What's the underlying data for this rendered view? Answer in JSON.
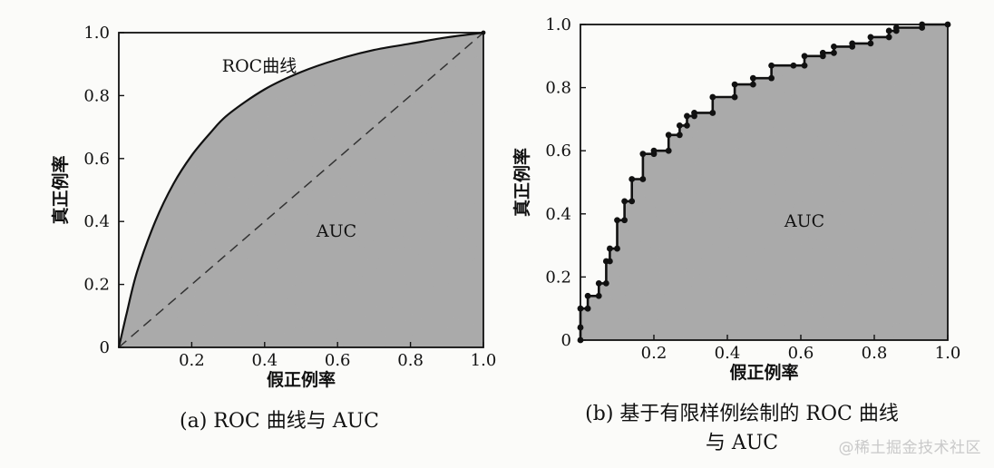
{
  "watermark": "@稀土掘金技术社区",
  "chart_data": [
    {
      "type": "area",
      "caption": "(a) ROC 曲线与 AUC",
      "xlabel": "假正例率",
      "ylabel": "真正例率",
      "xlim": [
        0,
        1
      ],
      "ylim": [
        0,
        1
      ],
      "xticks": [
        "0.2",
        "0.4",
        "0.6",
        "0.8",
        "1.0"
      ],
      "yticks": [
        "0",
        "0.2",
        "0.4",
        "0.6",
        "0.8",
        "1.0"
      ],
      "annotations": [
        "ROC曲线",
        "AUC"
      ],
      "series": [
        {
          "x": [
            0,
            0.02,
            0.05,
            0.1,
            0.15,
            0.2,
            0.25,
            0.3,
            0.4,
            0.5,
            0.6,
            0.7,
            0.8,
            0.9,
            1.0
          ],
          "y": [
            0,
            0.1,
            0.24,
            0.4,
            0.52,
            0.61,
            0.68,
            0.74,
            0.82,
            0.875,
            0.915,
            0.945,
            0.965,
            0.985,
            1.0
          ]
        },
        {
          "x": [
            0,
            1
          ],
          "y": [
            0,
            1
          ],
          "style": "dashed"
        }
      ],
      "fill": "#a9a9a9"
    },
    {
      "type": "area",
      "caption": "(b) 基于有限样例绘制的 ROC 曲线与 AUC",
      "caption_lines": [
        "(b) 基于有限样例绘制的 ROC 曲线",
        "与 AUC"
      ],
      "xlabel": "假正例率",
      "ylabel": "真正例率",
      "xlim": [
        0,
        1
      ],
      "ylim": [
        0,
        1
      ],
      "xticks": [
        "0.2",
        "0.4",
        "0.6",
        "0.8",
        "1.0"
      ],
      "yticks": [
        "0",
        "0.2",
        "0.4",
        "0.6",
        "0.8",
        "1.0"
      ],
      "annotations": [
        "AUC"
      ],
      "series": [
        {
          "step": true,
          "x": [
            0.0,
            0.0,
            0.0,
            0.02,
            0.02,
            0.05,
            0.05,
            0.07,
            0.07,
            0.08,
            0.08,
            0.1,
            0.1,
            0.12,
            0.12,
            0.14,
            0.14,
            0.17,
            0.17,
            0.2,
            0.2,
            0.24,
            0.24,
            0.27,
            0.27,
            0.29,
            0.29,
            0.31,
            0.31,
            0.36,
            0.36,
            0.42,
            0.42,
            0.47,
            0.47,
            0.52,
            0.52,
            0.58,
            0.58,
            0.61,
            0.61,
            0.66,
            0.66,
            0.69,
            0.69,
            0.74,
            0.74,
            0.79,
            0.79,
            0.84,
            0.84,
            0.86,
            0.86,
            0.93,
            0.93,
            1.0
          ],
          "y": [
            0.0,
            0.04,
            0.1,
            0.1,
            0.14,
            0.14,
            0.18,
            0.18,
            0.25,
            0.25,
            0.29,
            0.29,
            0.38,
            0.38,
            0.44,
            0.44,
            0.51,
            0.51,
            0.59,
            0.59,
            0.6,
            0.6,
            0.65,
            0.65,
            0.68,
            0.68,
            0.71,
            0.71,
            0.72,
            0.72,
            0.77,
            0.77,
            0.81,
            0.81,
            0.83,
            0.83,
            0.87,
            0.87,
            0.87,
            0.87,
            0.9,
            0.9,
            0.91,
            0.91,
            0.93,
            0.93,
            0.94,
            0.94,
            0.96,
            0.96,
            0.98,
            0.98,
            0.99,
            0.99,
            1.0,
            1.0
          ]
        }
      ],
      "fill": "#a9a9a9"
    }
  ]
}
